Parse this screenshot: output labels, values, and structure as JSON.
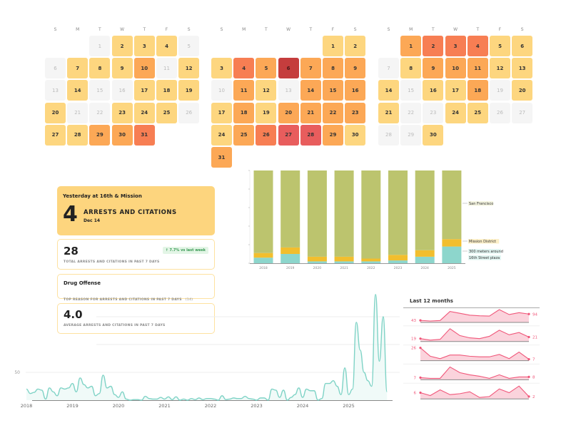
{
  "calendar": {
    "weekdays": [
      "S",
      "M",
      "T",
      "W",
      "T",
      "F",
      "S"
    ],
    "level_colors": [
      "#f5f5f5",
      "#fdd67f",
      "#fca856",
      "#f77e53",
      "#e85d5d",
      "#c53d3d"
    ],
    "months": [
      {
        "start_weekday": 2,
        "levels": [
          0,
          1,
          1,
          1,
          0,
          0,
          1,
          1,
          1,
          2,
          0,
          1,
          0,
          1,
          0,
          0,
          1,
          1,
          1,
          1,
          0,
          0,
          1,
          1,
          1,
          0,
          1,
          1,
          2,
          2,
          3
        ]
      },
      {
        "start_weekday": 5,
        "levels": [
          1,
          1,
          1,
          3,
          2,
          5,
          2,
          2,
          2,
          0,
          2,
          1,
          0,
          2,
          2,
          2,
          1,
          2,
          1,
          2,
          2,
          2,
          2,
          1,
          2,
          3,
          4,
          4,
          2,
          1,
          2
        ]
      },
      {
        "start_weekday": 1,
        "levels": [
          2,
          3,
          3,
          3,
          1,
          1,
          0,
          1,
          2,
          2,
          2,
          1,
          1,
          1,
          0,
          1,
          1,
          2,
          0,
          1,
          1,
          0,
          0,
          1,
          1,
          0,
          0,
          0,
          0,
          1
        ]
      }
    ]
  },
  "cards": {
    "yesterday": {
      "title": "Yesterday at 16th & Mission",
      "count": "4",
      "label": "ARRESTS AND CITATIONS",
      "date": "Dec 14"
    },
    "total": {
      "value": "28",
      "label": "TOTAL ARRESTS AND CITATIONS IN PAST 7 DAYS",
      "badge": "↑ 7.7% vs last week"
    },
    "reason": {
      "value": "Drug Offense",
      "label": "TOP REASON FOR ARRESTS AND CITATIONS IN PAST 7 DAYS",
      "count": "(14)"
    },
    "average": {
      "value": "4.0",
      "label": "AVERAGE ARRESTS AND CITATIONS IN PAST 7 DAYS"
    }
  },
  "chart_data": [
    {
      "type": "bar",
      "stacked": "percent",
      "categories": [
        "2018",
        "2019",
        "2020",
        "2021",
        "2022",
        "2023",
        "2024",
        "2025"
      ],
      "series": [
        {
          "name": "300 meters around 16th Street plaza",
          "color": "#8dd6cc",
          "values": [
            6,
            10,
            2,
            2,
            2,
            3,
            7,
            18
          ]
        },
        {
          "name": "Mission District",
          "color": "#f2be2e",
          "values": [
            5,
            7,
            5,
            5,
            3,
            6,
            7,
            8
          ]
        },
        {
          "name": "San Francisco",
          "color": "#bcc46e",
          "values": [
            89,
            83,
            93,
            93,
            95,
            91,
            86,
            74
          ]
        }
      ],
      "ylim": [
        0,
        100
      ],
      "legend": "right"
    },
    {
      "type": "line",
      "x_start": "2018-01",
      "x_step": "month",
      "xticks": [
        "2018",
        "2019",
        "2020",
        "2021",
        "2022",
        "2023",
        "2024",
        "2025"
      ],
      "yticks": [
        "50"
      ],
      "ylim": [
        0,
        190
      ],
      "color": "#7fd3c6",
      "values": [
        20,
        12,
        14,
        20,
        18,
        2,
        22,
        15,
        8,
        22,
        20,
        22,
        30,
        15,
        40,
        28,
        22,
        25,
        8,
        12,
        45,
        22,
        25,
        10,
        5,
        15,
        2,
        0,
        1,
        1,
        0,
        7,
        3,
        2,
        2,
        5,
        2,
        6,
        1,
        6,
        0,
        2,
        0,
        3,
        1,
        4,
        1,
        3,
        3,
        2,
        0,
        8,
        1,
        2,
        4,
        3,
        3,
        7,
        3,
        2,
        0,
        4,
        4,
        0,
        20,
        18,
        5,
        18,
        0,
        5,
        10,
        22,
        5,
        20,
        17,
        17,
        0,
        3,
        30,
        30,
        35,
        25,
        10,
        58,
        10,
        20,
        140,
        90,
        50,
        35,
        25,
        190,
        70,
        150,
        15
      ]
    },
    {
      "type": "line",
      "title": "Last 12 months",
      "color": "#f0577a",
      "rows": [
        {
          "start_label": "43",
          "end_label": "94",
          "values": [
            43,
            38,
            42,
            115,
            100,
            85,
            80,
            78,
            130,
            90,
            105,
            94
          ]
        },
        {
          "start_label": "19",
          "end_label": "21",
          "values": [
            19,
            17,
            18,
            32,
            23,
            20,
            19,
            22,
            30,
            24,
            27,
            21
          ]
        },
        {
          "start_label": "26",
          "end_label": "7",
          "values": [
            26,
            12,
            8,
            14,
            14,
            12,
            11,
            11,
            15,
            8,
            19,
            7
          ]
        },
        {
          "start_label": "7",
          "end_label": "8",
          "values": [
            7,
            6,
            6,
            22,
            14,
            11,
            9,
            6,
            11,
            6,
            8,
            8
          ]
        },
        {
          "start_label": "6",
          "end_label": "2",
          "values": [
            6,
            3,
            9,
            4,
            5,
            7,
            1,
            2,
            10,
            6,
            13,
            2
          ]
        }
      ]
    }
  ]
}
